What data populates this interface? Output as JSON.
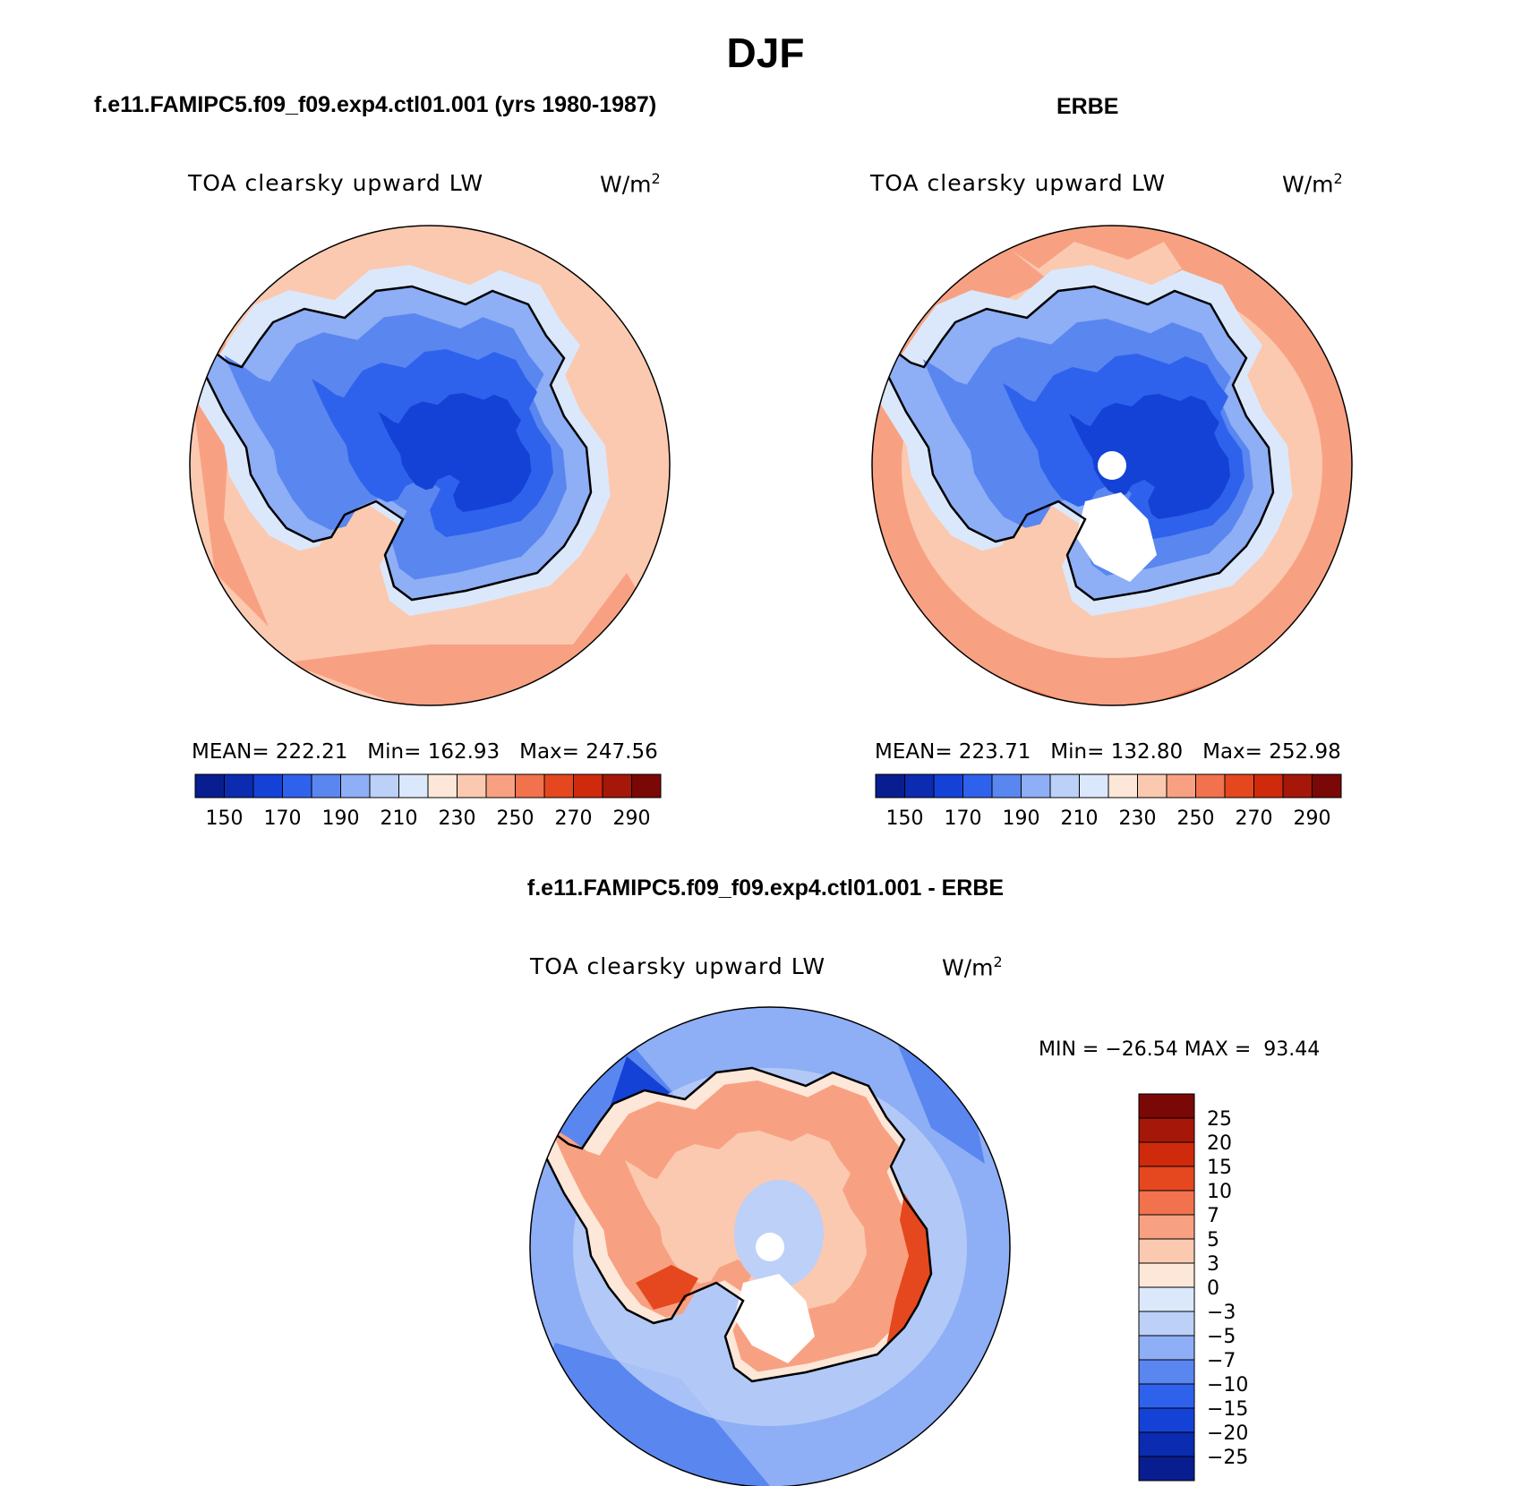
{
  "figure": {
    "season": "DJF"
  },
  "panels": [
    {
      "header": "f.e11.FAMIPC5.f09_f09.exp4.ctl01.001 (yrs 1980-1987)",
      "variable": "TOA clearsky upward LW",
      "units": "W/m",
      "units_sup": "2",
      "stats": "MEAN= 222.21   Min= 162.93   Max= 247.56",
      "region": "Antarctica",
      "missing_pole": false
    },
    {
      "header": "ERBE",
      "variable": "TOA clearsky upward LW",
      "units": "W/m",
      "units_sup": "2",
      "stats": "MEAN= 223.71   Min= 132.80   Max= 252.98",
      "region": "Antarctica",
      "missing_pole": true
    }
  ],
  "colorbar_abs": {
    "labels": [
      "150",
      "170",
      "190",
      "210",
      "230",
      "250",
      "270",
      "290"
    ],
    "colors": [
      "#081d8f",
      "#0b2bb0",
      "#1542d6",
      "#2f62ec",
      "#5a86f0",
      "#8eaef5",
      "#bcd0f8",
      "#dbe8fb",
      "#fde7d8",
      "#fbc9b0",
      "#f8a182",
      "#f2724e",
      "#e5481e",
      "#cf2a0c",
      "#a51708",
      "#7a0806"
    ]
  },
  "diff": {
    "header": "f.e11.FAMIPC5.f09_f09.exp4.ctl01.001 - ERBE",
    "variable": "TOA clearsky upward LW",
    "units": "W/m",
    "units_sup": "2",
    "minmax": "MIN = −26.54 MAX =  93.44",
    "colorbar_labels": [
      "25",
      "20",
      "15",
      "10",
      "7",
      "5",
      "3",
      "0",
      "−3",
      "−5",
      "−7",
      "−10",
      "−15",
      "−20",
      "−25"
    ],
    "colors": [
      "#7a0806",
      "#a51708",
      "#cf2a0c",
      "#e5481e",
      "#f2724e",
      "#f8a182",
      "#fbc9b0",
      "#fde7d8",
      "#dbe8fb",
      "#bcd0f8",
      "#8eaef5",
      "#5a86f0",
      "#2f62ec",
      "#1542d6",
      "#0b2bb0",
      "#081d8f"
    ]
  },
  "legend": {
    "ocean_model": "#fbc9b0",
    "ocean_model_edge": "#f8a182",
    "ocean_obs": "#f8a182",
    "ocean_obs_edge": "#f2724e",
    "diff_ocean": "#8eaef5",
    "diff_ocean_dark": "#5a86f0",
    "coast": "#000000"
  }
}
